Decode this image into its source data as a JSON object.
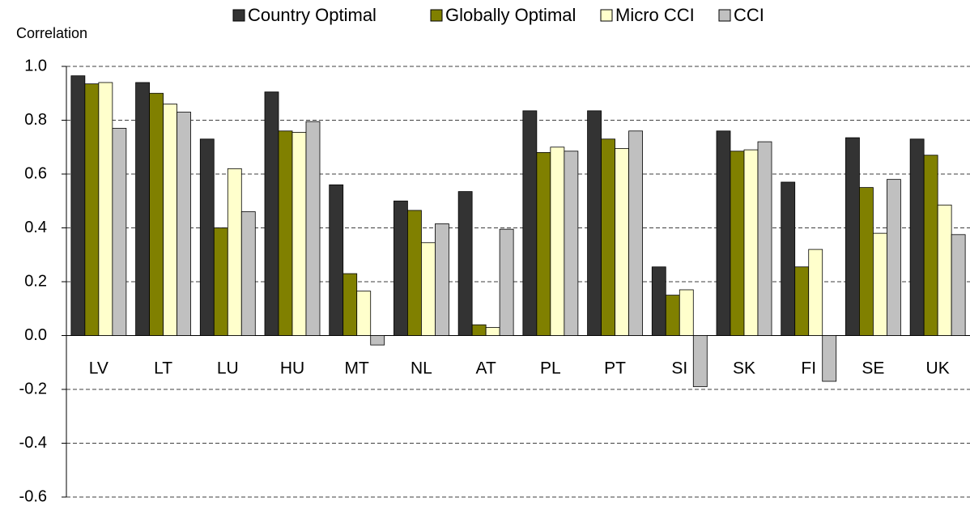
{
  "chart_data": {
    "type": "bar",
    "y_label": "Correlation",
    "categories": [
      "LV",
      "LT",
      "LU",
      "HU",
      "MT",
      "NL",
      "AT",
      "PL",
      "PT",
      "SI",
      "SK",
      "FI",
      "SE",
      "UK"
    ],
    "series": [
      {
        "name": "Country Optimal",
        "color": "#333333",
        "values": [
          0.965,
          0.94,
          0.73,
          0.905,
          0.56,
          0.5,
          0.535,
          0.835,
          0.835,
          0.255,
          0.76,
          0.57,
          0.735,
          0.73
        ]
      },
      {
        "name": "Globally Optimal",
        "color": "#808000",
        "values": [
          0.935,
          0.9,
          0.4,
          0.76,
          0.23,
          0.465,
          0.04,
          0.68,
          0.73,
          0.15,
          0.685,
          0.255,
          0.55,
          0.67
        ]
      },
      {
        "name": "Micro CCI",
        "color": "#ffffcc",
        "values": [
          0.94,
          0.86,
          0.62,
          0.755,
          0.165,
          0.345,
          0.03,
          0.7,
          0.695,
          0.17,
          0.69,
          0.32,
          0.38,
          0.485
        ]
      },
      {
        "name": "CCI",
        "color": "#c0c0c0",
        "values": [
          0.77,
          0.83,
          0.46,
          0.795,
          -0.035,
          0.415,
          0.395,
          0.685,
          0.76,
          -0.19,
          0.72,
          -0.17,
          0.58,
          0.375
        ]
      }
    ],
    "ylim": [
      -0.6,
      1.0
    ],
    "yticks": [
      -0.6,
      -0.4,
      -0.2,
      {
        "value": 0,
        "label": "0.0"
      },
      0.2,
      0.4,
      0.6,
      0.8,
      {
        "value": 1,
        "label": "1.0"
      }
    ],
    "grid": true
  }
}
